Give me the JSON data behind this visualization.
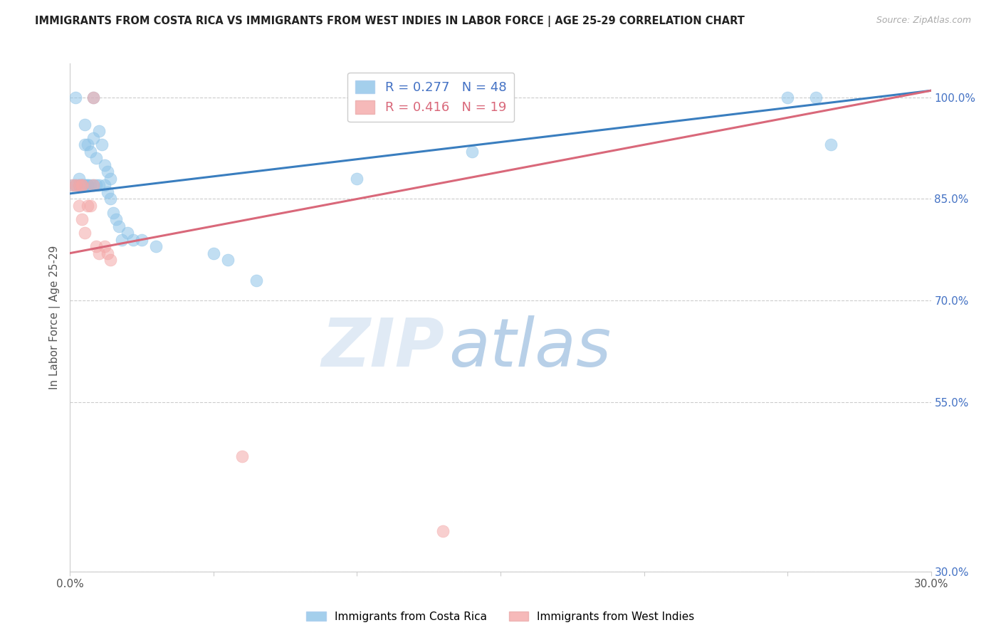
{
  "title": "IMMIGRANTS FROM COSTA RICA VS IMMIGRANTS FROM WEST INDIES IN LABOR FORCE | AGE 25-29 CORRELATION CHART",
  "source": "Source: ZipAtlas.com",
  "ylabel": "In Labor Force | Age 25-29",
  "xlim": [
    0.0,
    0.3
  ],
  "ylim": [
    0.3,
    1.05
  ],
  "xticks": [
    0.0,
    0.05,
    0.1,
    0.15,
    0.2,
    0.25,
    0.3
  ],
  "xtick_labels": [
    "0.0%",
    "",
    "",
    "",
    "",
    "",
    "30.0%"
  ],
  "ytick_labels_right": [
    "100.0%",
    "85.0%",
    "70.0%",
    "55.0%",
    "30.0%"
  ],
  "ytick_positions_right": [
    1.0,
    0.85,
    0.7,
    0.55,
    0.3
  ],
  "grid_color": "#cccccc",
  "background_color": "#ffffff",
  "blue_color": "#8ec4e8",
  "pink_color": "#f4a8a8",
  "blue_line_color": "#3a7ebf",
  "pink_line_color": "#d9687a",
  "R_blue": 0.277,
  "N_blue": 48,
  "R_pink": 0.416,
  "N_pink": 19,
  "legend_label_blue": "Immigrants from Costa Rica",
  "legend_label_pink": "Immigrants from West Indies",
  "blue_line_x0": 0.0,
  "blue_line_y0": 0.858,
  "blue_line_x1": 0.3,
  "blue_line_y1": 1.01,
  "pink_line_x0": 0.0,
  "pink_line_y0": 0.77,
  "pink_line_x1": 0.3,
  "pink_line_y1": 1.01,
  "blue_scatter_x": [
    0.001,
    0.002,
    0.002,
    0.003,
    0.003,
    0.003,
    0.004,
    0.004,
    0.004,
    0.005,
    0.005,
    0.005,
    0.005,
    0.006,
    0.006,
    0.006,
    0.007,
    0.007,
    0.008,
    0.008,
    0.008,
    0.009,
    0.009,
    0.01,
    0.01,
    0.011,
    0.012,
    0.012,
    0.013,
    0.013,
    0.014,
    0.014,
    0.015,
    0.016,
    0.017,
    0.018,
    0.02,
    0.022,
    0.025,
    0.03,
    0.05,
    0.055,
    0.065,
    0.1,
    0.14,
    0.25,
    0.26,
    0.265
  ],
  "blue_scatter_y": [
    0.87,
    1.0,
    0.87,
    0.87,
    0.87,
    0.88,
    0.87,
    0.87,
    0.87,
    0.87,
    0.87,
    0.93,
    0.96,
    0.87,
    0.87,
    0.93,
    0.87,
    0.92,
    0.87,
    0.94,
    1.0,
    0.87,
    0.91,
    0.87,
    0.95,
    0.93,
    0.87,
    0.9,
    0.86,
    0.89,
    0.85,
    0.88,
    0.83,
    0.82,
    0.81,
    0.79,
    0.8,
    0.79,
    0.79,
    0.78,
    0.77,
    0.76,
    0.73,
    0.88,
    0.92,
    1.0,
    1.0,
    0.93
  ],
  "pink_scatter_x": [
    0.001,
    0.002,
    0.003,
    0.003,
    0.004,
    0.004,
    0.004,
    0.005,
    0.006,
    0.007,
    0.008,
    0.008,
    0.009,
    0.01,
    0.012,
    0.013,
    0.014,
    0.06,
    0.13
  ],
  "pink_scatter_y": [
    0.87,
    0.87,
    0.84,
    0.87,
    0.87,
    0.87,
    0.82,
    0.8,
    0.84,
    0.84,
    0.87,
    1.0,
    0.78,
    0.77,
    0.78,
    0.77,
    0.76,
    0.47,
    0.36
  ],
  "watermark_zip": "ZIP",
  "watermark_atlas": "atlas",
  "watermark_color_zip": "#e0eaf5",
  "watermark_color_atlas": "#b8d0e8",
  "watermark_fontsize": 68
}
